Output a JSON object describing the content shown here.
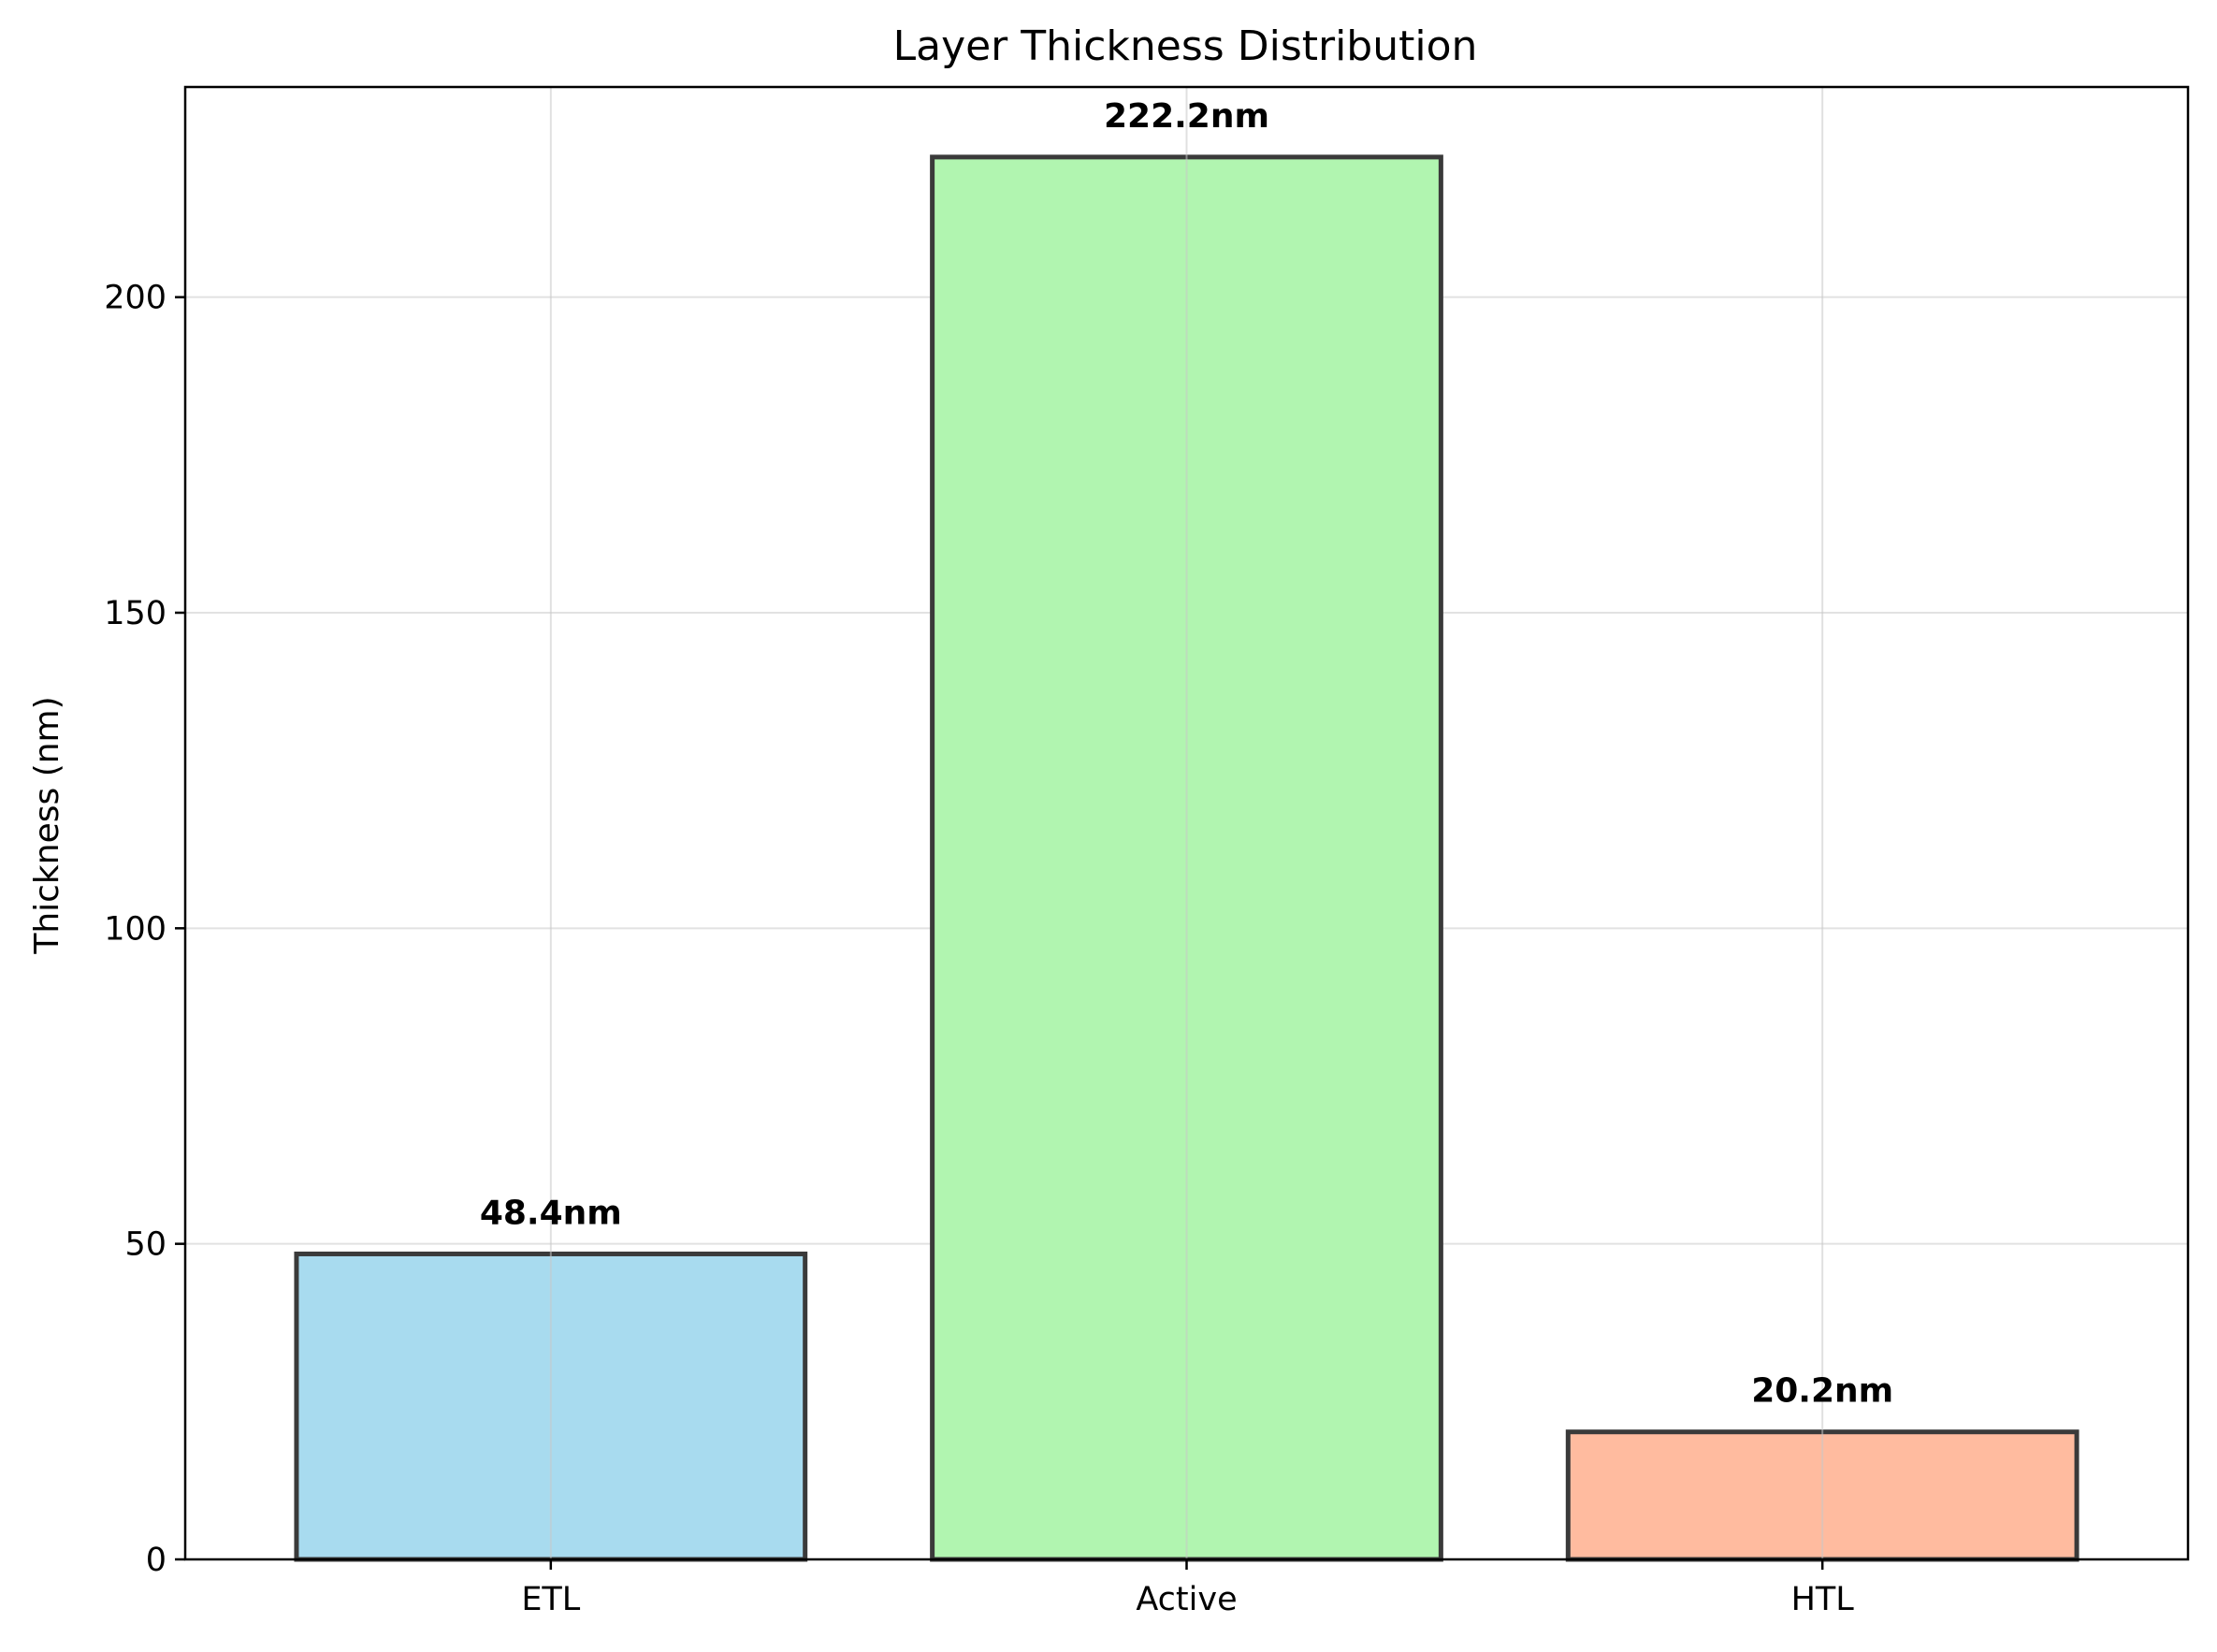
{
  "chart_data": {
    "type": "bar",
    "title": "Layer Thickness Distribution",
    "xlabel": "",
    "ylabel": "Thickness (nm)",
    "categories": [
      "ETL",
      "Active",
      "HTL"
    ],
    "values": [
      48.4,
      222.2,
      20.2
    ],
    "value_labels": [
      "48.4nm",
      "222.2nm",
      "20.2nm"
    ],
    "colors": [
      "#a8dbef",
      "#b1f5b0",
      "#ffbb9f"
    ],
    "edge_color": "#3a3a3a",
    "ylim": [
      0,
      233.3
    ],
    "yticks": [
      0,
      50,
      100,
      150,
      200
    ],
    "ytick_labels": [
      "0",
      "50",
      "100",
      "150",
      "200"
    ],
    "grid": true,
    "legend": "none"
  }
}
